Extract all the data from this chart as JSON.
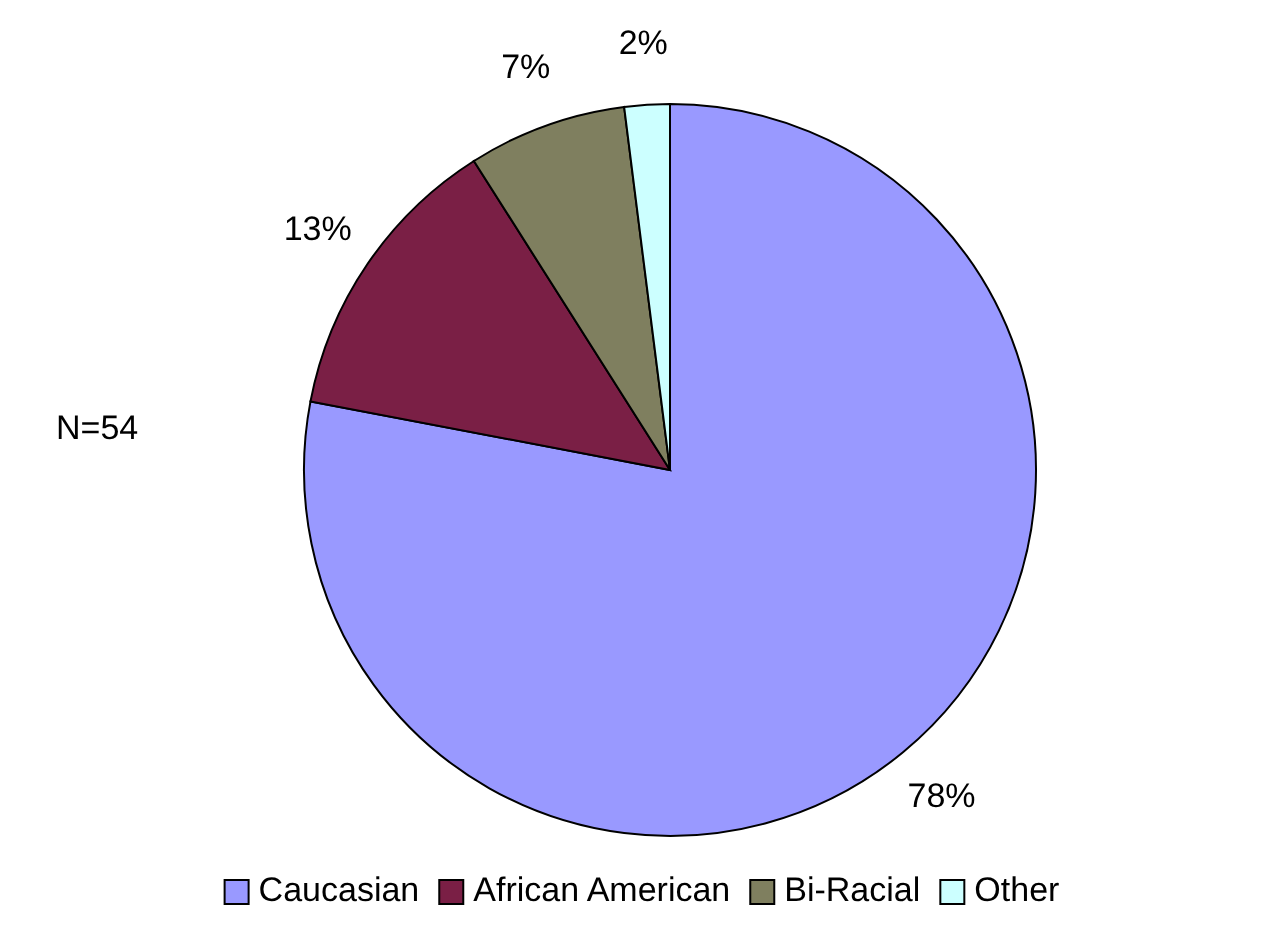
{
  "chart_data": {
    "type": "pie",
    "categories": [
      "Caucasian",
      "African American",
      "Bi-Racial",
      "Other"
    ],
    "values": [
      78,
      13,
      7,
      2
    ],
    "colors": [
      "#9999ff",
      "#7a1f45",
      "#7f7f5f",
      "#ccffff"
    ],
    "value_labels": [
      "78%",
      "13%",
      "7%",
      "2%"
    ],
    "annotations": [
      "N=54"
    ],
    "legend": "bottom"
  }
}
